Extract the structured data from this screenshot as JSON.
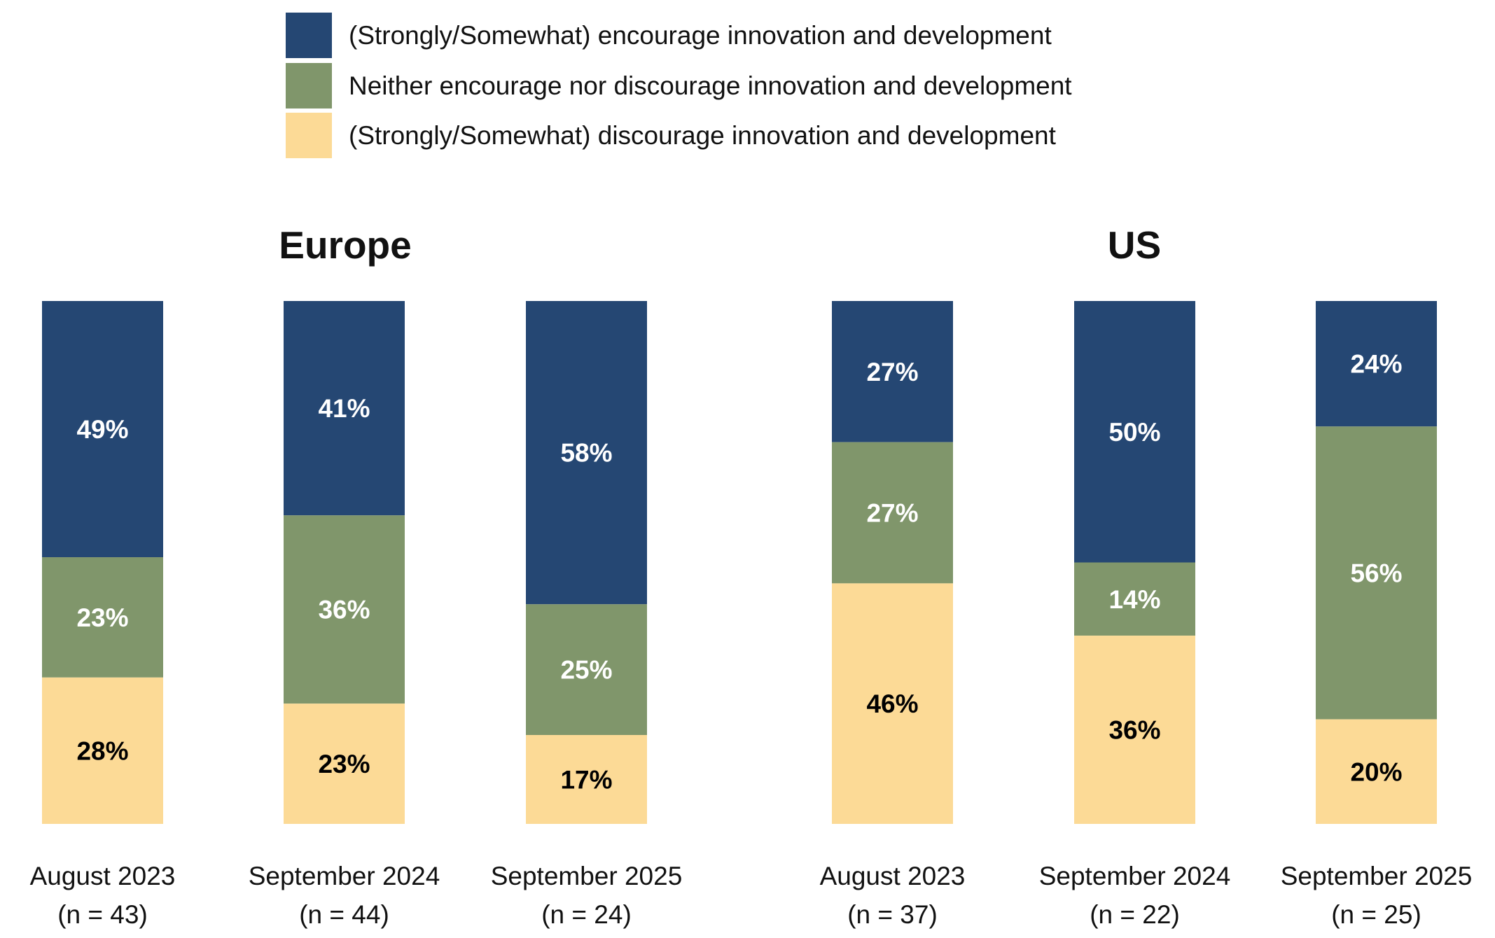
{
  "chart_data": {
    "type": "bar",
    "stacked": true,
    "legend_placement": "top",
    "grid": false,
    "ylim": [
      0,
      100
    ],
    "legend": [
      {
        "name": "(Strongly/Somewhat) encourage innovation and development",
        "color": "#254773"
      },
      {
        "name": "Neither encourage nor discourage innovation and development",
        "color": "#80966B"
      },
      {
        "name": "(Strongly/Somewhat) discourage innovation and development",
        "color": "#FCDA96"
      }
    ],
    "panels": [
      {
        "title": "Europe",
        "categories": [
          {
            "label": "August 2023",
            "n": "(n = 43)"
          },
          {
            "label": "September 2024",
            "n": "(n = 44)"
          },
          {
            "label": "September 2025",
            "n": "(n = 24)"
          }
        ],
        "series": [
          {
            "name": "(Strongly/Somewhat) encourage innovation and development",
            "values": [
              49,
              41,
              58
            ]
          },
          {
            "name": "Neither encourage nor discourage innovation and development",
            "values": [
              23,
              36,
              25
            ]
          },
          {
            "name": "(Strongly/Somewhat) discourage innovation and development",
            "values": [
              28,
              23,
              17
            ]
          }
        ]
      },
      {
        "title": "US",
        "categories": [
          {
            "label": "August 2023",
            "n": "(n = 37)"
          },
          {
            "label": "September 2024",
            "n": "(n = 22)"
          },
          {
            "label": "September 2025",
            "n": "(n = 25)"
          }
        ],
        "series": [
          {
            "name": "(Strongly/Somewhat) encourage innovation and development",
            "values": [
              27,
              50,
              24
            ]
          },
          {
            "name": "Neither encourage nor discourage innovation and development",
            "values": [
              27,
              14,
              56
            ]
          },
          {
            "name": "(Strongly/Somewhat) discourage innovation and development",
            "values": [
              46,
              36,
              20
            ]
          }
        ]
      }
    ],
    "label_colors": [
      "#ffffff",
      "#ffffff",
      "#000000"
    ]
  }
}
